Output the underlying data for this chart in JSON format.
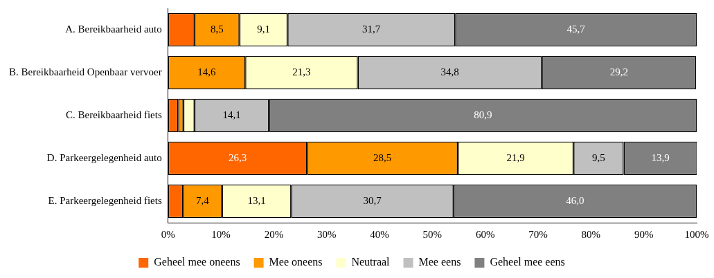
{
  "chart_data": {
    "type": "bar",
    "orientation": "horizontal",
    "stacked": true,
    "categories": [
      "A. Bereikbaarheid auto",
      "B. Bereikbaarheid Openbaar vervoer",
      "C. Bereikbaarheid fiets",
      "D. Parkeergelegenheid auto",
      "E. Parkeergelegenheid fiets"
    ],
    "series": [
      {
        "name": "Geheel mee oneens",
        "color": "#ff6600",
        "values": [
          5.0,
          0,
          1.9,
          26.3,
          2.8
        ],
        "value_labels": [
          null,
          null,
          null,
          "26,3",
          null
        ]
      },
      {
        "name": "Mee oneens",
        "color": "#ff9900",
        "values": [
          8.5,
          14.6,
          1.0,
          28.5,
          7.4
        ],
        "value_labels": [
          "8,5",
          "14,6",
          null,
          "28,5",
          "7,4"
        ]
      },
      {
        "name": "Neutraal",
        "color": "#ffffcc",
        "values": [
          9.1,
          21.3,
          2.1,
          21.9,
          13.1
        ],
        "value_labels": [
          "9,1",
          "21,3",
          null,
          "21,9",
          "13,1"
        ]
      },
      {
        "name": "Mee eens",
        "color": "#c0c0c0",
        "values": [
          31.7,
          34.8,
          14.1,
          9.5,
          30.7
        ],
        "value_labels": [
          "31,7",
          "34,8",
          "14,1",
          "9,5",
          "30,7"
        ]
      },
      {
        "name": "Geheel mee eens",
        "color": "#808080",
        "values": [
          45.7,
          29.2,
          80.9,
          13.9,
          46.0
        ],
        "value_labels": [
          "45,7",
          "29,2",
          "80,9",
          "13,9",
          "46,0"
        ]
      }
    ],
    "xlim": [
      0,
      100
    ],
    "xticks": [
      {
        "value": 0,
        "label": "0%"
      },
      {
        "value": 10,
        "label": "10%"
      },
      {
        "value": 20,
        "label": "20%"
      },
      {
        "value": 30,
        "label": "30%"
      },
      {
        "value": 40,
        "label": "40%"
      },
      {
        "value": 50,
        "label": "50%"
      },
      {
        "value": 60,
        "label": "60%"
      },
      {
        "value": 70,
        "label": "70%"
      },
      {
        "value": 80,
        "label": "80%"
      },
      {
        "value": 90,
        "label": "90%"
      },
      {
        "value": 100,
        "label": "100%"
      }
    ],
    "grid": false,
    "legend": "bottom"
  }
}
